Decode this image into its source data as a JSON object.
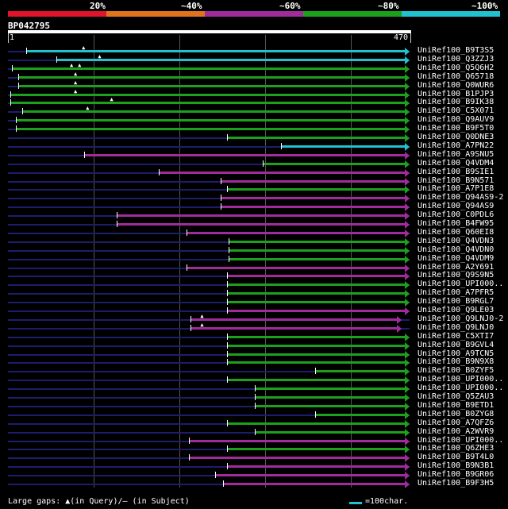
{
  "identity_scale": {
    "labels": [
      "20%",
      "~40%",
      "~60%",
      "~80%",
      "~100%"
    ],
    "colors": {
      "band20": "#e0142a",
      "band40": "#e0741e",
      "band60": "#a02c9c",
      "band80": "#1ea01e",
      "band100": "#22c1cf"
    }
  },
  "query": {
    "id": "BP042795",
    "start": "1",
    "end": "470"
  },
  "hits": [
    {
      "name": "UniRef100_B9T3S5",
      "color": "cyan",
      "start": 0.045,
      "end": 1.0,
      "gaps": [
        0.19
      ]
    },
    {
      "name": "UniRef100_Q3ZZJ3",
      "color": "cyan",
      "start": 0.12,
      "end": 1.0,
      "gaps": [
        0.23
      ]
    },
    {
      "name": "UniRef100_Q5Q6H2",
      "color": "green",
      "start": 0.01,
      "end": 1.0,
      "gaps": [
        0.16,
        0.18
      ]
    },
    {
      "name": "UniRef100_Q65718",
      "color": "green",
      "start": 0.025,
      "end": 1.0,
      "gaps": [
        0.17
      ]
    },
    {
      "name": "UniRef100_Q0WUR6",
      "color": "green",
      "start": 0.025,
      "end": 1.0,
      "gaps": [
        0.17
      ]
    },
    {
      "name": "UniRef100_B1PJP3",
      "color": "green",
      "start": 0.005,
      "end": 1.0,
      "gaps": [
        0.17
      ]
    },
    {
      "name": "UniRef100_B9IK38",
      "color": "green",
      "start": 0.005,
      "end": 1.0,
      "gaps": [
        0.26
      ]
    },
    {
      "name": "UniRef100_C5X071",
      "color": "green",
      "start": 0.035,
      "end": 1.0,
      "gaps": [
        0.2
      ]
    },
    {
      "name": "UniRef100_Q9AUV9",
      "color": "green",
      "start": 0.02,
      "end": 1.0,
      "gaps": []
    },
    {
      "name": "UniRef100_B9F5T0",
      "color": "green",
      "start": 0.02,
      "end": 1.0,
      "gaps": []
    },
    {
      "name": "UniRef100_Q0DNE3",
      "color": "green",
      "start": 0.545,
      "end": 1.0,
      "gaps": []
    },
    {
      "name": "UniRef100_A7PN22",
      "color": "cyan",
      "start": 0.68,
      "end": 1.0,
      "gaps": []
    },
    {
      "name": "UniRef100_A9SNU5",
      "color": "purple",
      "start": 0.19,
      "end": 1.0,
      "gaps": []
    },
    {
      "name": "UniRef100_Q4VDM4",
      "color": "green",
      "start": 0.635,
      "end": 1.0,
      "gaps": []
    },
    {
      "name": "UniRef100_B9SIE1",
      "color": "purple",
      "start": 0.375,
      "end": 1.0,
      "gaps": []
    },
    {
      "name": "UniRef100_B9N571",
      "color": "purple",
      "start": 0.53,
      "end": 1.0,
      "gaps": []
    },
    {
      "name": "UniRef100_A7P1E8",
      "color": "green",
      "start": 0.545,
      "end": 1.0,
      "gaps": []
    },
    {
      "name": "UniRef100_Q94AS9-2",
      "color": "purple",
      "start": 0.53,
      "end": 1.0,
      "gaps": []
    },
    {
      "name": "UniRef100_Q94AS9",
      "color": "purple",
      "start": 0.53,
      "end": 1.0,
      "gaps": []
    },
    {
      "name": "UniRef100_C0PDL6",
      "color": "purple",
      "start": 0.27,
      "end": 1.0,
      "gaps": []
    },
    {
      "name": "UniRef100_B4FW95",
      "color": "purple",
      "start": 0.27,
      "end": 1.0,
      "gaps": []
    },
    {
      "name": "UniRef100_Q60EI8",
      "color": "purple",
      "start": 0.445,
      "end": 1.0,
      "gaps": []
    },
    {
      "name": "UniRef100_Q4VDN3",
      "color": "green",
      "start": 0.55,
      "end": 1.0,
      "gaps": []
    },
    {
      "name": "UniRef100_Q4VDN0",
      "color": "green",
      "start": 0.55,
      "end": 1.0,
      "gaps": []
    },
    {
      "name": "UniRef100_Q4VDM9",
      "color": "green",
      "start": 0.55,
      "end": 1.0,
      "gaps": []
    },
    {
      "name": "UniRef100_A2Y691",
      "color": "purple",
      "start": 0.445,
      "end": 1.0,
      "gaps": []
    },
    {
      "name": "UniRef100_Q9S9N5",
      "color": "purple",
      "start": 0.545,
      "end": 1.0,
      "gaps": []
    },
    {
      "name": "UniRef100_UPI000..",
      "color": "green",
      "start": 0.545,
      "end": 1.0,
      "gaps": []
    },
    {
      "name": "UniRef100_A7PFR5",
      "color": "green",
      "start": 0.545,
      "end": 1.0,
      "gaps": []
    },
    {
      "name": "UniRef100_B9RGL7",
      "color": "green",
      "start": 0.545,
      "end": 1.0,
      "gaps": []
    },
    {
      "name": "UniRef100_Q9LE03",
      "color": "purple",
      "start": 0.545,
      "end": 1.0,
      "gaps": []
    },
    {
      "name": "UniRef100_Q9LNJ0-2",
      "color": "purple",
      "start": 0.455,
      "end": 0.98,
      "gaps": [
        0.485
      ]
    },
    {
      "name": "UniRef100_Q9LNJ0",
      "color": "purple",
      "start": 0.455,
      "end": 0.98,
      "gaps": [
        0.485
      ]
    },
    {
      "name": "UniRef100_C5XTI7",
      "color": "green",
      "start": 0.545,
      "end": 1.0,
      "gaps": []
    },
    {
      "name": "UniRef100_B9GVL4",
      "color": "green",
      "start": 0.545,
      "end": 1.0,
      "gaps": []
    },
    {
      "name": "UniRef100_A9TCN5",
      "color": "green",
      "start": 0.545,
      "end": 1.0,
      "gaps": []
    },
    {
      "name": "UniRef100_B9N9X8",
      "color": "green",
      "start": 0.545,
      "end": 1.0,
      "gaps": []
    },
    {
      "name": "UniRef100_B0ZYF5",
      "color": "green",
      "start": 0.765,
      "end": 1.0,
      "gaps": []
    },
    {
      "name": "UniRef100_UPI000..",
      "color": "green",
      "start": 0.545,
      "end": 1.0,
      "gaps": []
    },
    {
      "name": "UniRef100_UPI000..",
      "color": "green",
      "start": 0.615,
      "end": 1.0,
      "gaps": []
    },
    {
      "name": "UniRef100_Q5ZAU3",
      "color": "green",
      "start": 0.615,
      "end": 1.0,
      "gaps": []
    },
    {
      "name": "UniRef100_B9ETD1",
      "color": "green",
      "start": 0.615,
      "end": 1.0,
      "gaps": []
    },
    {
      "name": "UniRef100_B0ZYG8",
      "color": "green",
      "start": 0.765,
      "end": 1.0,
      "gaps": []
    },
    {
      "name": "UniRef100_A7QFZ6",
      "color": "green",
      "start": 0.545,
      "end": 1.0,
      "gaps": []
    },
    {
      "name": "UniRef100_A2WVR9",
      "color": "green",
      "start": 0.615,
      "end": 1.0,
      "gaps": []
    },
    {
      "name": "UniRef100_UPI000..",
      "color": "purple",
      "start": 0.45,
      "end": 1.0,
      "gaps": []
    },
    {
      "name": "UniRef100_Q6ZHE3",
      "color": "green",
      "start": 0.545,
      "end": 1.0,
      "gaps": []
    },
    {
      "name": "UniRef100_B9T4L0",
      "color": "purple",
      "start": 0.45,
      "end": 1.0,
      "gaps": []
    },
    {
      "name": "UniRef100_B9N3B1",
      "color": "purple",
      "start": 0.545,
      "end": 1.0,
      "gaps": []
    },
    {
      "name": "UniRef100_B9GR06",
      "color": "purple",
      "start": 0.515,
      "end": 1.0,
      "gaps": []
    },
    {
      "name": "UniRef100_B9F3H5",
      "color": "purple",
      "start": 0.535,
      "end": 1.0,
      "gaps": []
    }
  ],
  "legend": {
    "gaps_text": "Large gaps: ▲(in Query)/– (in Subject)",
    "scale_text": "=100char."
  }
}
